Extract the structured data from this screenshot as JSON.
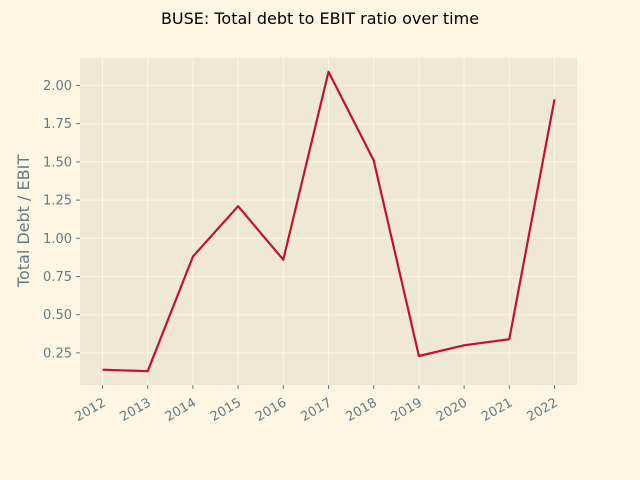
{
  "chart_data": {
    "type": "line",
    "title": "BUSE: Total debt to EBIT ratio over time",
    "xlabel": "",
    "ylabel": "Total Debt / EBIT",
    "categories": [
      "2012",
      "2013",
      "2014",
      "2015",
      "2016",
      "2017",
      "2018",
      "2019",
      "2020",
      "2021",
      "2022"
    ],
    "series": [
      {
        "values": [
          0.14,
          0.13,
          0.88,
          1.21,
          0.86,
          2.09,
          1.51,
          0.23,
          0.3,
          0.34,
          1.91
        ]
      }
    ],
    "ylim": [
      0.04,
      2.18
    ],
    "yticks": [
      "0.25",
      "0.50",
      "0.75",
      "1.00",
      "1.25",
      "1.50",
      "1.75",
      "2.00"
    ],
    "grid": true,
    "colors": {
      "line": "#c8102e",
      "plot_background": "#eee8d5",
      "figure_background": "#fdf6e3",
      "grid": "#fdf6e3",
      "tick_text": "#657b83"
    }
  }
}
